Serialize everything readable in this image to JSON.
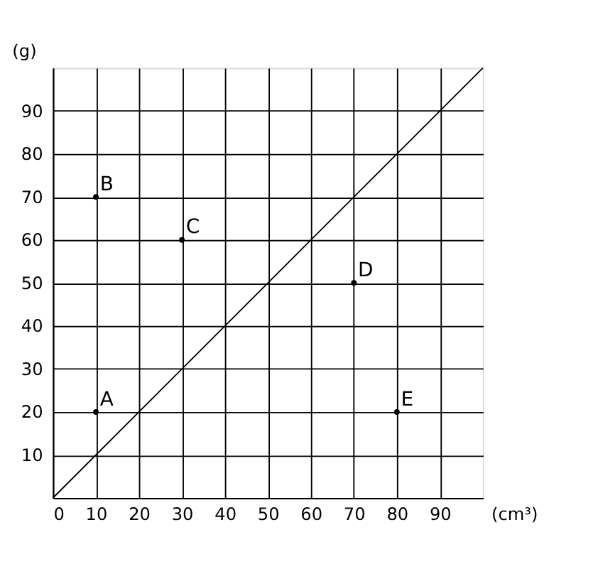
{
  "chart_data": {
    "type": "scatter",
    "xlabel": "(cm³)",
    "ylabel": "(g)",
    "xlim": [
      0,
      100
    ],
    "ylim": [
      0,
      100
    ],
    "xticks": [
      0,
      10,
      20,
      30,
      40,
      50,
      60,
      70,
      80,
      90
    ],
    "yticks": [
      {
        "value": 0,
        "label": null
      },
      10,
      20,
      30,
      40,
      50,
      60,
      70,
      80,
      90
    ],
    "grid": true,
    "series": [
      {
        "type": "scatter",
        "color": "#000000",
        "marker": "circle",
        "x": [
          10,
          10,
          30,
          70,
          80
        ],
        "values": [
          20,
          70,
          60,
          50,
          20
        ]
      },
      {
        "type": "line",
        "color": "#000000",
        "x": [
          0,
          100
        ],
        "values": [
          0,
          100
        ]
      }
    ],
    "annotations": [
      {
        "text": "A",
        "x": 10,
        "y": 20
      },
      {
        "text": "B",
        "x": 10,
        "y": 70
      },
      {
        "text": "C",
        "x": 30,
        "y": 60
      },
      {
        "text": "D",
        "x": 70,
        "y": 50
      },
      {
        "text": "E",
        "x": 80,
        "y": 20
      }
    ]
  }
}
